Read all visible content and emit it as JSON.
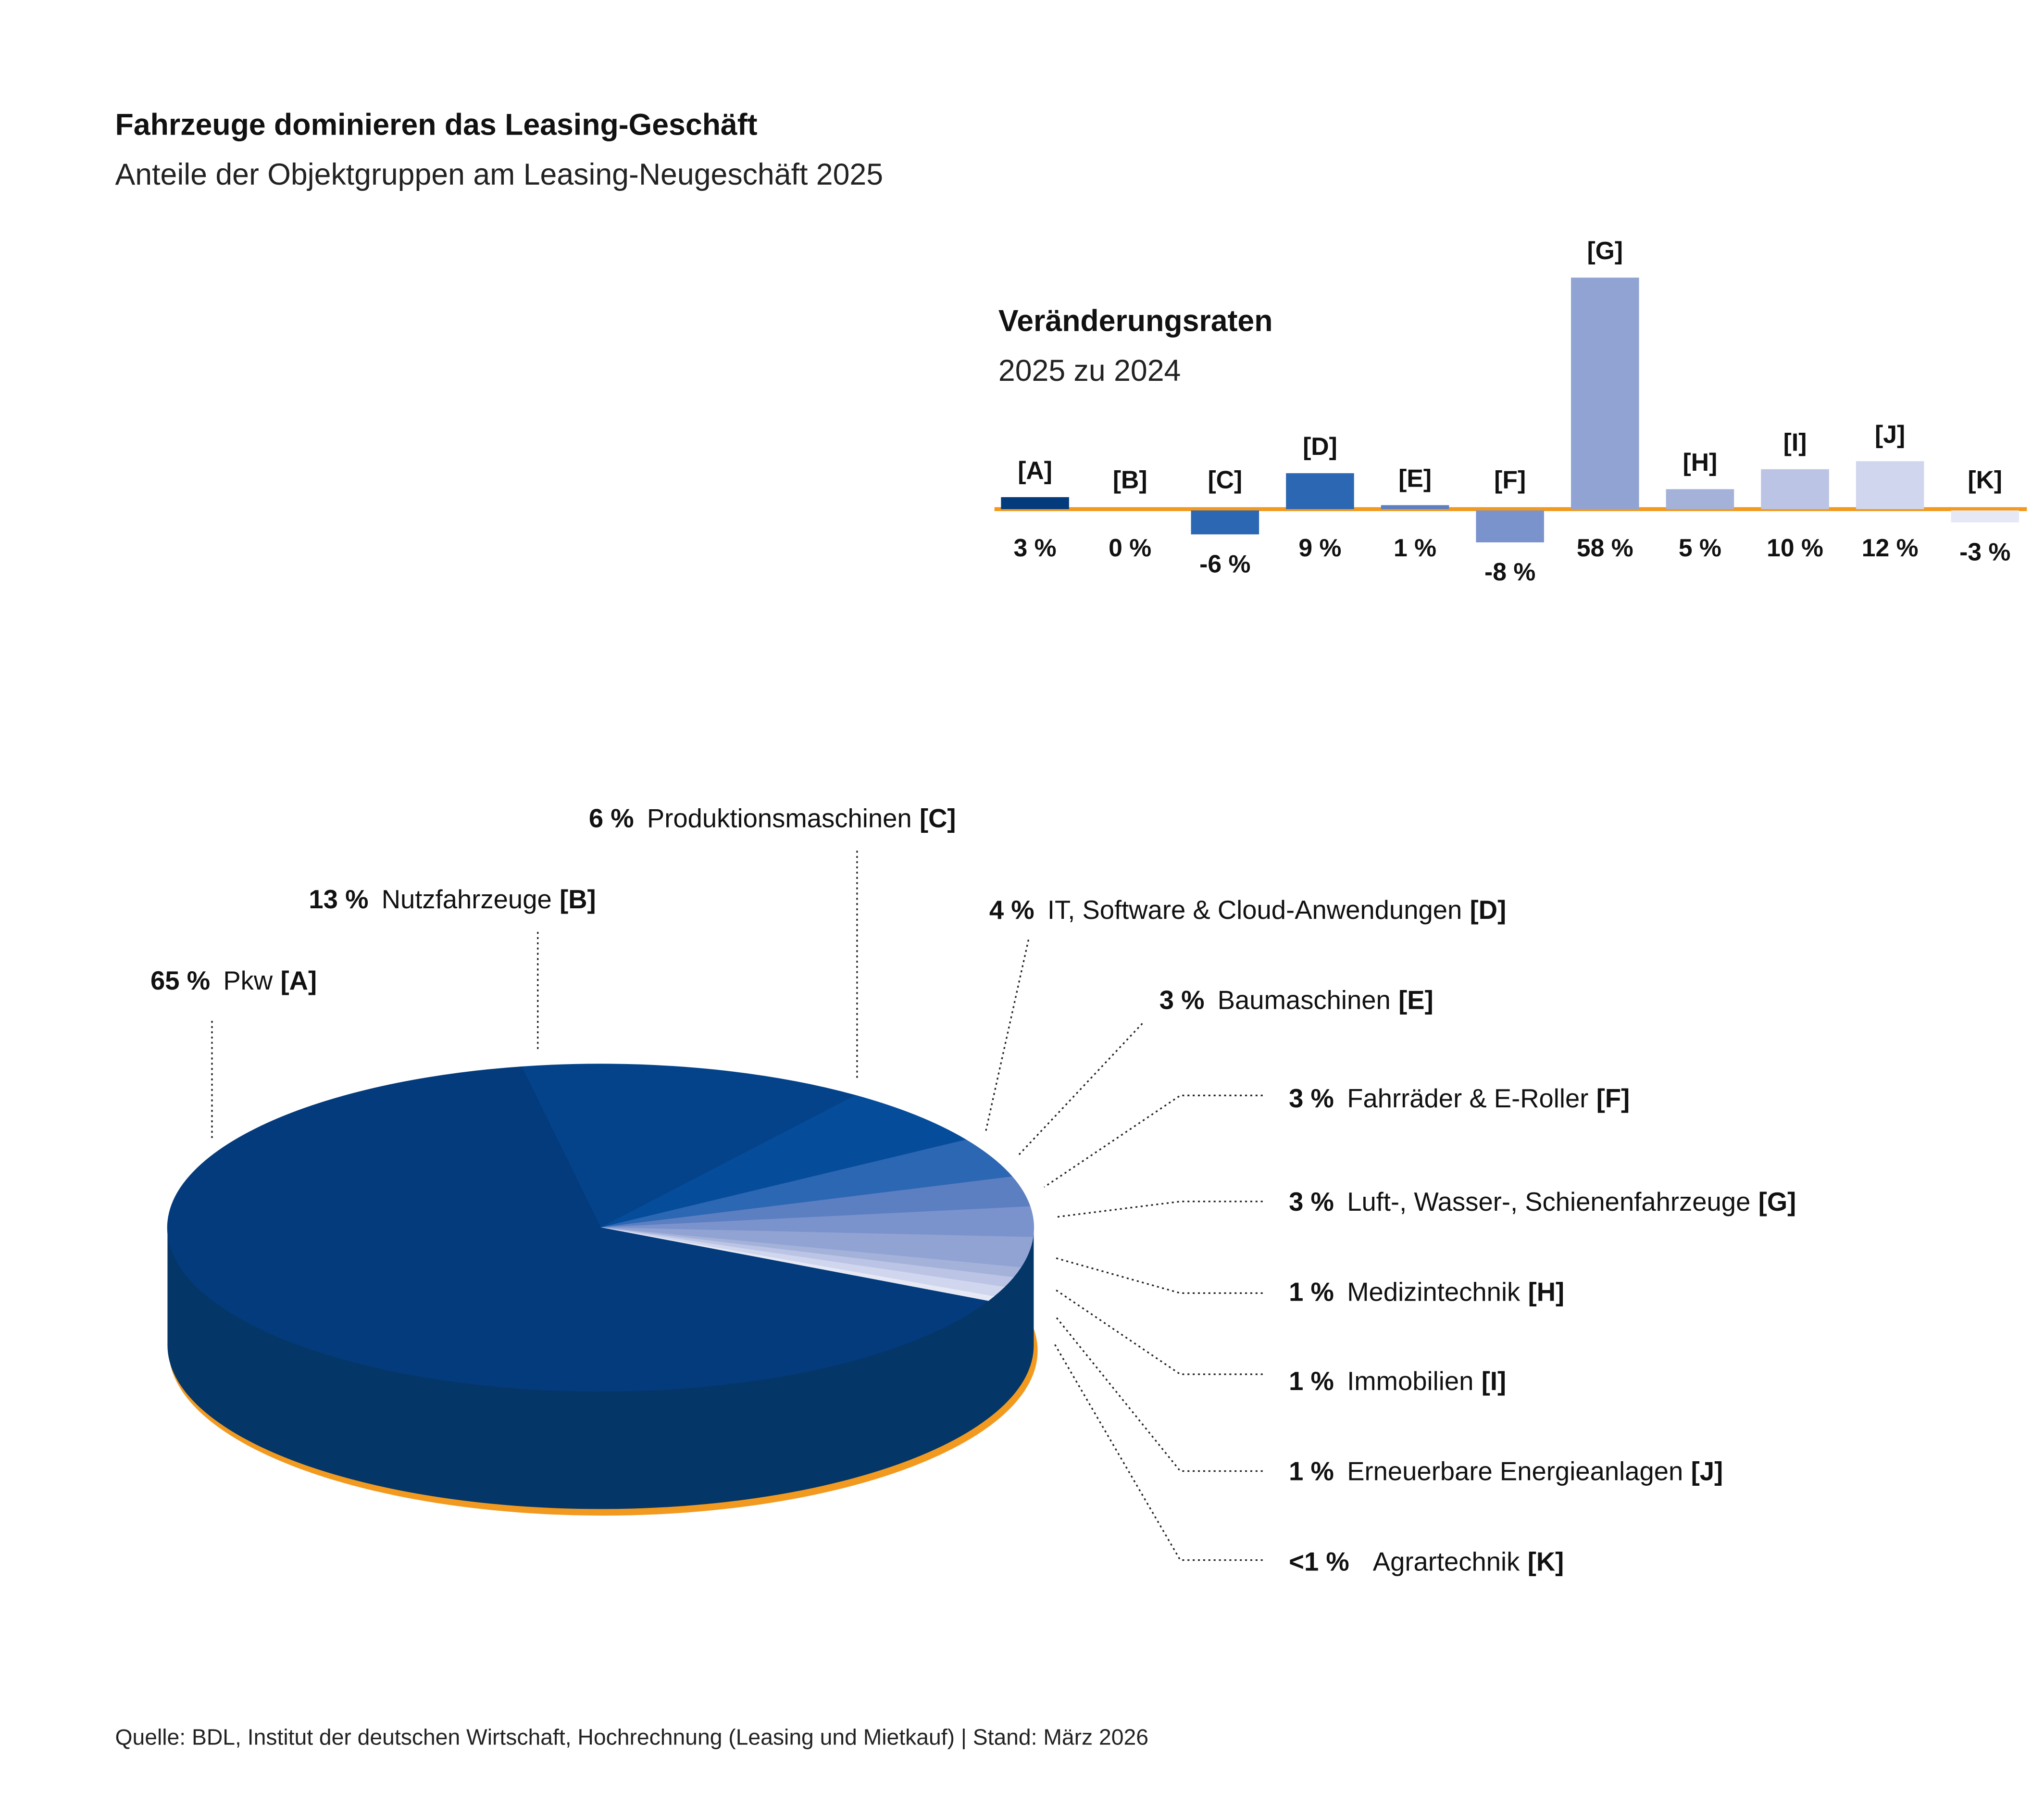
{
  "title": "Fahrzeuge dominieren das Leasing-Geschäft",
  "subtitle": "Anteile der Objektgruppen am Leasing-Neugeschäft 2025",
  "source": "Quelle: BDL, Institut der deutschen Wirtschaft, Hochrechnung (Leasing und Mietkauf) | Stand: März 2026",
  "colors": {
    "axis_line": "#f29a1f",
    "pie_rim": "#f29a1f",
    "pie_side": "#043668"
  },
  "chart_data": [
    {
      "type": "pie",
      "slices": [
        {
          "id": "A",
          "pct_label": "65 %",
          "name": "Pkw",
          "tag": "[A]",
          "value": 65,
          "color": "#043b7c"
        },
        {
          "id": "B",
          "pct_label": "13 %",
          "name": "Nutzfahrzeuge",
          "tag": "[B]",
          "value": 13,
          "color": "#04438a"
        },
        {
          "id": "C",
          "pct_label": "6 %",
          "name": "Produktionsmaschinen",
          "tag": "[C]",
          "value": 6,
          "color": "#054c9b"
        },
        {
          "id": "D",
          "pct_label": "4 %",
          "name": "IT, Software & Cloud-Anwendungen",
          "tag": "[D]",
          "value": 4,
          "color": "#2c67b3"
        },
        {
          "id": "E",
          "pct_label": "3 %",
          "name": "Baumaschinen",
          "tag": "[E]",
          "value": 3,
          "color": "#5c7fc2"
        },
        {
          "id": "F",
          "pct_label": "3 %",
          "name": "Fahrräder & E-Roller",
          "tag": "[F]",
          "value": 3,
          "color": "#7b93cc"
        },
        {
          "id": "G",
          "pct_label": "3 %",
          "name": "Luft-, Wasser-, Schienenfahrzeuge",
          "tag": "[G]",
          "value": 3,
          "color": "#90a3d3"
        },
        {
          "id": "H",
          "pct_label": "1 %",
          "name": "Medizintechnik",
          "tag": "[H]",
          "value": 1,
          "color": "#a4b2da"
        },
        {
          "id": "I",
          "pct_label": "1 %",
          "name": "Immobilien",
          "tag": "[I]",
          "value": 1,
          "color": "#bbc4e4"
        },
        {
          "id": "J",
          "pct_label": "1 %",
          "name": "Erneuerbare Energieanlagen",
          "tag": "[J]",
          "value": 1,
          "color": "#d0d6ee"
        },
        {
          "id": "K",
          "pct_label": "<1 %",
          "name": "Agrartechnik",
          "tag": "[K]",
          "value": 0.5,
          "color": "#e6e9f5"
        }
      ]
    },
    {
      "type": "bar",
      "title": "Veränderungsraten",
      "subtitle": "2025 zu 2024",
      "categories": [
        "[A]",
        "[B]",
        "[C]",
        "[D]",
        "[E]",
        "[F]",
        "[G]",
        "[H]",
        "[I]",
        "[J]",
        "[K]"
      ],
      "values": [
        3,
        0,
        -6,
        9,
        1,
        -8,
        58,
        5,
        10,
        12,
        -3
      ],
      "value_labels": [
        "3 %",
        "0 %",
        "-6 %",
        "9 %",
        "1 %",
        "-8 %",
        "58 %",
        "5 %",
        "10 %",
        "12 %",
        "-3 %"
      ],
      "colors": [
        "#043b7c",
        "#04438a",
        "#2c67b3",
        "#2c67b3",
        "#5c7fc2",
        "#7b93cc",
        "#90a3d3",
        "#a4b2da",
        "#bbc4e4",
        "#d0d6ee",
        "#e6e9f5"
      ]
    }
  ]
}
